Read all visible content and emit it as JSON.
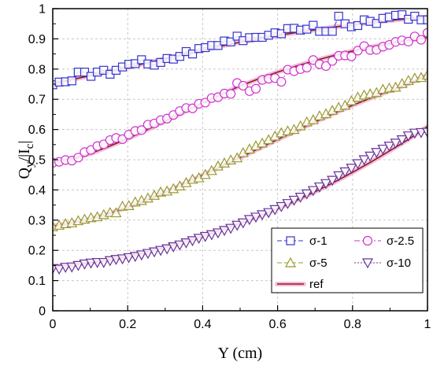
{
  "chart_data": {
    "type": "scatter",
    "xlabel": "Y (cm)",
    "ylabel_parts": [
      "Q",
      "y",
      "/|I",
      "c",
      "|"
    ],
    "xlim": [
      0,
      1
    ],
    "ylim": [
      0,
      1
    ],
    "x_ticks": [
      "0",
      "0.2",
      "0.4",
      "0.6",
      "0.8",
      "1"
    ],
    "y_ticks": [
      "0",
      "0.1",
      "0.2",
      "0.3",
      "0.4",
      "0.5",
      "0.6",
      "0.7",
      "0.8",
      "0.9",
      "1"
    ],
    "grid": true,
    "legend_placement": "bottom-right",
    "x": [
      0.0,
      0.017,
      0.034,
      0.051,
      0.068,
      0.085,
      0.102,
      0.119,
      0.136,
      0.153,
      0.169,
      0.186,
      0.203,
      0.22,
      0.237,
      0.254,
      0.271,
      0.288,
      0.305,
      0.322,
      0.339,
      0.356,
      0.373,
      0.39,
      0.407,
      0.424,
      0.441,
      0.458,
      0.475,
      0.492,
      0.508,
      0.525,
      0.542,
      0.559,
      0.576,
      0.593,
      0.61,
      0.627,
      0.644,
      0.661,
      0.678,
      0.695,
      0.712,
      0.729,
      0.746,
      0.763,
      0.78,
      0.797,
      0.814,
      0.831,
      0.847,
      0.864,
      0.881,
      0.898,
      0.915,
      0.932,
      0.949,
      0.966,
      0.983,
      1.0
    ],
    "series": [
      {
        "name": "σ-1",
        "color": "#3333cc",
        "marker": "square",
        "line": "dash",
        "values": [
          0.748,
          0.757,
          0.758,
          0.761,
          0.79,
          0.79,
          0.776,
          0.79,
          0.796,
          0.783,
          0.796,
          0.807,
          0.816,
          0.818,
          0.831,
          0.817,
          0.813,
          0.822,
          0.835,
          0.833,
          0.842,
          0.858,
          0.85,
          0.868,
          0.871,
          0.878,
          0.878,
          0.893,
          0.89,
          0.909,
          0.894,
          0.904,
          0.905,
          0.905,
          0.912,
          0.92,
          0.917,
          0.934,
          0.935,
          0.929,
          0.932,
          0.945,
          0.925,
          0.925,
          0.925,
          0.975,
          0.95,
          0.94,
          0.944,
          0.963,
          0.958,
          0.951,
          0.968,
          0.972,
          0.978,
          0.98,
          0.965,
          0.975,
          0.963,
          0.963
        ]
      },
      {
        "name": "σ-2.5",
        "color": "#cc33cc",
        "marker": "circle",
        "line": "dashdot",
        "values": [
          0.49,
          0.493,
          0.499,
          0.497,
          0.507,
          0.525,
          0.532,
          0.545,
          0.551,
          0.565,
          0.572,
          0.568,
          0.583,
          0.595,
          0.598,
          0.616,
          0.62,
          0.631,
          0.636,
          0.648,
          0.661,
          0.671,
          0.67,
          0.685,
          0.689,
          0.704,
          0.707,
          0.719,
          0.718,
          0.754,
          0.745,
          0.727,
          0.735,
          0.764,
          0.768,
          0.77,
          0.758,
          0.798,
          0.793,
          0.8,
          0.805,
          0.83,
          0.816,
          0.81,
          0.827,
          0.844,
          0.845,
          0.842,
          0.861,
          0.876,
          0.863,
          0.864,
          0.874,
          0.88,
          0.89,
          0.895,
          0.891,
          0.908,
          0.897,
          0.92
        ]
      },
      {
        "name": "σ-5",
        "color": "#999933",
        "marker": "triangle-up",
        "line": "dash",
        "values": [
          0.278,
          0.283,
          0.288,
          0.291,
          0.298,
          0.303,
          0.308,
          0.311,
          0.318,
          0.325,
          0.324,
          0.346,
          0.348,
          0.36,
          0.365,
          0.373,
          0.382,
          0.393,
          0.396,
          0.404,
          0.413,
          0.424,
          0.435,
          0.44,
          0.451,
          0.464,
          0.479,
          0.489,
          0.499,
          0.506,
          0.523,
          0.535,
          0.546,
          0.555,
          0.566,
          0.578,
          0.589,
          0.595,
          0.6,
          0.612,
          0.625,
          0.632,
          0.645,
          0.652,
          0.663,
          0.673,
          0.68,
          0.695,
          0.707,
          0.714,
          0.718,
          0.722,
          0.733,
          0.737,
          0.74,
          0.752,
          0.762,
          0.77,
          0.772,
          0.78
        ]
      },
      {
        "name": "σ-10",
        "color": "#663399",
        "marker": "triangle-down",
        "line": "dot",
        "values": [
          0.14,
          0.138,
          0.144,
          0.145,
          0.15,
          0.155,
          0.158,
          0.16,
          0.16,
          0.166,
          0.17,
          0.172,
          0.176,
          0.18,
          0.185,
          0.19,
          0.195,
          0.2,
          0.205,
          0.212,
          0.218,
          0.225,
          0.232,
          0.24,
          0.246,
          0.252,
          0.258,
          0.266,
          0.273,
          0.283,
          0.291,
          0.302,
          0.31,
          0.318,
          0.325,
          0.335,
          0.345,
          0.355,
          0.366,
          0.376,
          0.387,
          0.398,
          0.41,
          0.421,
          0.432,
          0.447,
          0.46,
          0.472,
          0.487,
          0.5,
          0.512,
          0.524,
          0.535,
          0.545,
          0.555,
          0.566,
          0.579,
          0.588,
          0.59,
          0.591
        ]
      }
    ],
    "ref": {
      "name": "ref",
      "color": "#8b1a1a",
      "halo_color": "#f0a8d0",
      "x": [
        0,
        0.05,
        0.1,
        0.15,
        0.2,
        0.25,
        0.3,
        0.35,
        0.4,
        0.45,
        0.5,
        0.55,
        0.6,
        0.65,
        0.7,
        0.75,
        0.8,
        0.85,
        0.9,
        0.95,
        1.0
      ],
      "series": [
        [
          0.752,
          0.765,
          0.778,
          0.792,
          0.806,
          0.82,
          0.835,
          0.849,
          0.863,
          0.876,
          0.889,
          0.9,
          0.911,
          0.921,
          0.93,
          0.939,
          0.947,
          0.954,
          0.961,
          0.967,
          0.972
        ],
        [
          0.492,
          0.503,
          0.52,
          0.544,
          0.57,
          0.598,
          0.628,
          0.658,
          0.688,
          0.716,
          0.744,
          0.768,
          0.79,
          0.81,
          0.828,
          0.845,
          0.86,
          0.873,
          0.885,
          0.896,
          0.905
        ],
        [
          0.28,
          0.29,
          0.303,
          0.321,
          0.343,
          0.366,
          0.392,
          0.42,
          0.449,
          0.478,
          0.507,
          0.537,
          0.567,
          0.596,
          0.625,
          0.653,
          0.68,
          0.705,
          0.729,
          0.752,
          0.78
        ],
        [
          0.145,
          0.152,
          0.16,
          0.169,
          0.18,
          0.194,
          0.21,
          0.228,
          0.247,
          0.268,
          0.29,
          0.313,
          0.338,
          0.365,
          0.394,
          0.425,
          0.458,
          0.493,
          0.53,
          0.568,
          0.61
        ]
      ]
    }
  }
}
